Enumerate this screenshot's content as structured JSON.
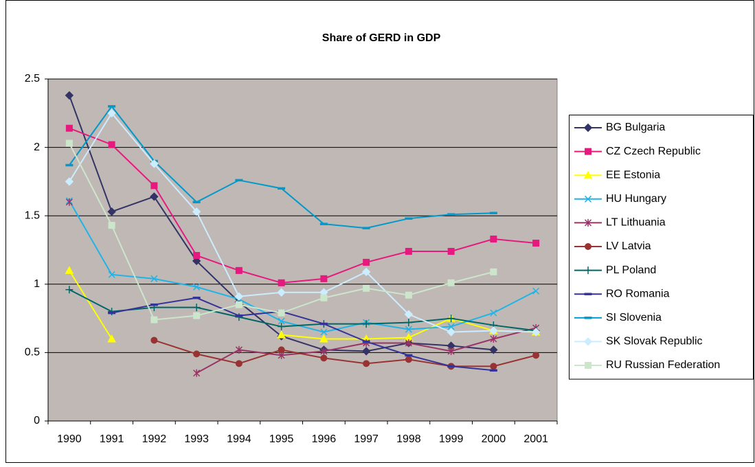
{
  "chart_data": {
    "type": "line",
    "title": "Share of GERD in GDP",
    "categories": [
      "1990",
      "1991",
      "1992",
      "1993",
      "1994",
      "1995",
      "1996",
      "1997",
      "1998",
      "1999",
      "2000",
      "2001"
    ],
    "ylim": [
      0,
      2.5
    ],
    "yticks": [
      0,
      0.5,
      1,
      1.5,
      2,
      2.5
    ],
    "grid": true,
    "legend": "right",
    "plot_background": "#c0b8b4",
    "series": [
      {
        "name": "BG Bulgaria",
        "color": "#333366",
        "marker": "diamond",
        "values": [
          2.38,
          1.53,
          1.64,
          1.17,
          0.87,
          0.62,
          0.52,
          0.51,
          0.57,
          0.55,
          0.52,
          null
        ]
      },
      {
        "name": "CZ Czech Republic",
        "color": "#e6197f",
        "marker": "square",
        "values": [
          2.14,
          2.02,
          1.72,
          1.21,
          1.1,
          1.01,
          1.04,
          1.16,
          1.24,
          1.24,
          1.33,
          1.3
        ]
      },
      {
        "name": "EE Estonia",
        "color": "#ffff00",
        "marker": "triangle",
        "values": [
          1.1,
          0.6,
          null,
          null,
          null,
          0.63,
          0.6,
          0.6,
          0.61,
          0.75,
          0.66,
          0.65
        ]
      },
      {
        "name": "HU Hungary",
        "color": "#1fb4e8",
        "marker": "x",
        "values": [
          1.61,
          1.07,
          1.04,
          0.98,
          0.89,
          0.73,
          0.65,
          0.72,
          0.67,
          0.69,
          0.79,
          0.95
        ]
      },
      {
        "name": "LT Lithuania",
        "color": "#993366",
        "marker": "asterisk",
        "values": [
          1.6,
          null,
          null,
          0.35,
          0.52,
          0.48,
          0.51,
          0.57,
          0.57,
          0.51,
          0.6,
          0.68
        ]
      },
      {
        "name": "LV Latvia",
        "color": "#993333",
        "marker": "circle",
        "values": [
          null,
          null,
          0.59,
          0.49,
          0.42,
          0.52,
          0.46,
          0.42,
          0.45,
          0.4,
          0.4,
          0.48
        ]
      },
      {
        "name": "PL Poland",
        "color": "#006666",
        "marker": "plus",
        "values": [
          0.96,
          0.8,
          0.83,
          0.83,
          0.76,
          0.69,
          0.71,
          0.71,
          0.72,
          0.75,
          0.7,
          0.66
        ]
      },
      {
        "name": "RO Romania",
        "color": "#333399",
        "marker": "dash",
        "values": [
          null,
          0.79,
          0.85,
          0.9,
          0.77,
          0.8,
          0.71,
          0.58,
          0.48,
          0.4,
          0.37,
          null
        ]
      },
      {
        "name": "SI Slovenia",
        "color": "#0099cc",
        "marker": "dash",
        "values": [
          1.87,
          2.3,
          1.9,
          1.6,
          1.76,
          1.7,
          1.44,
          1.41,
          1.48,
          1.51,
          1.52,
          null
        ]
      },
      {
        "name": "SK Slovak Republic",
        "color": "#ccecff",
        "marker": "diamond",
        "values": [
          1.75,
          2.25,
          1.88,
          1.53,
          0.91,
          0.94,
          0.94,
          1.09,
          0.78,
          0.65,
          0.66,
          0.65
        ]
      },
      {
        "name": "RU Russian Federation",
        "color": "#cce6cc",
        "marker": "square",
        "values": [
          2.03,
          1.43,
          0.74,
          0.77,
          0.85,
          0.79,
          0.9,
          0.97,
          0.92,
          1.01,
          1.09,
          null
        ]
      }
    ]
  }
}
